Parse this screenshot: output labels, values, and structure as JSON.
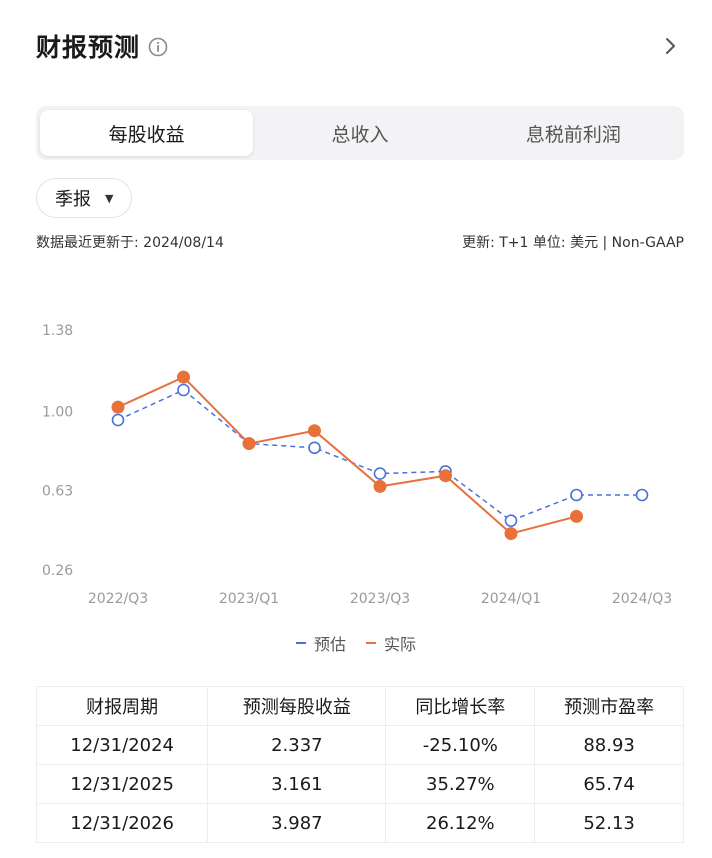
{
  "header": {
    "title": "财报预测",
    "info_icon": "info-circle-icon",
    "nav_icon": "chevron-right-icon"
  },
  "tabs": [
    {
      "label": "每股收益",
      "active": true
    },
    {
      "label": "总收入",
      "active": false
    },
    {
      "label": "息税前利润",
      "active": false
    }
  ],
  "period_select": {
    "label": "季报",
    "icon": "caret-down-icon"
  },
  "update_left": "数据最近更新于: 2024/08/14",
  "update_right": "更新: T+1  单位: 美元 | Non-GAAP",
  "colors": {
    "forecast": "#4a72d8",
    "actual": "#e8703a"
  },
  "chart_data": {
    "type": "line",
    "x_ticks": [
      "2022/Q3",
      "2023/Q1",
      "2023/Q3",
      "2024/Q1",
      "2024/Q3"
    ],
    "y_ticks": [
      "1.38",
      "1.00",
      "0.63",
      "0.26"
    ],
    "ylim": [
      0.26,
      1.38
    ],
    "categories": [
      "2022/Q3",
      "2022/Q4",
      "2023/Q1",
      "2023/Q2",
      "2023/Q3",
      "2023/Q4",
      "2024/Q1",
      "2024/Q2",
      "2024/Q3"
    ],
    "series": [
      {
        "name": "预估",
        "style": "dashed",
        "values": [
          0.96,
          1.1,
          0.85,
          0.83,
          0.71,
          0.72,
          0.49,
          0.61,
          0.61
        ]
      },
      {
        "name": "实际",
        "style": "solid",
        "values": [
          1.02,
          1.16,
          0.85,
          0.91,
          0.65,
          0.7,
          0.43,
          0.51,
          null
        ]
      }
    ]
  },
  "table": {
    "headers": [
      "财报周期",
      "预测每股收益",
      "同比增长率",
      "预测市盈率"
    ],
    "rows": [
      [
        "12/31/2024",
        "2.337",
        "-25.10%",
        "88.93"
      ],
      [
        "12/31/2025",
        "3.161",
        "35.27%",
        "65.74"
      ],
      [
        "12/31/2026",
        "3.987",
        "26.12%",
        "52.13"
      ]
    ]
  }
}
